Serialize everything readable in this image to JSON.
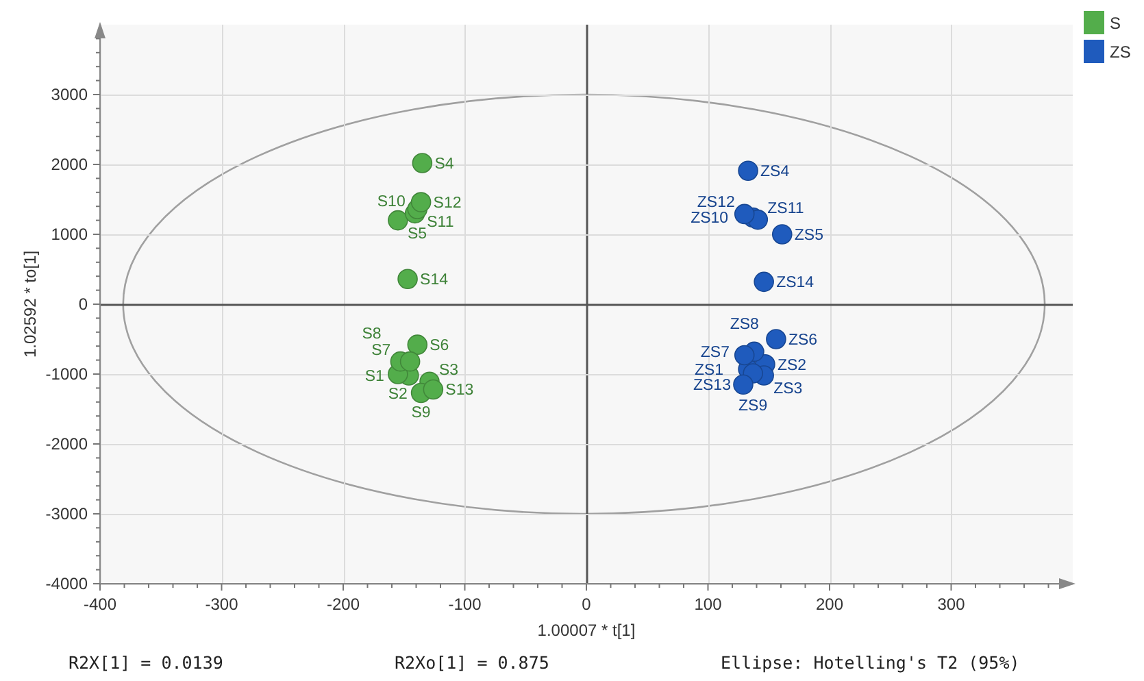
{
  "chart_data": {
    "type": "scatter",
    "xlabel": "1.00007 * t[1]",
    "ylabel": "1.02592 * to[1]",
    "annotations": [
      "R2X[1] = 0.0139",
      "R2Xo[1] = 0.875",
      "Ellipse: Hotelling's T2 (95%)"
    ],
    "series": [
      {
        "name": "S",
        "color": "#53ad4b",
        "x": [
          -146,
          -155,
          -129,
          -135,
          -155,
          -139,
          -153,
          -145,
          -136,
          -141,
          -139,
          -136,
          -126,
          -147
        ],
        "values": [
          -1020,
          -1000,
          -1110,
          2020,
          1200,
          -580,
          -820,
          -820,
          -1270,
          1300,
          1360,
          1460,
          -1220,
          360
        ],
        "value_labels": [
          "S1",
          "S2",
          "S3",
          "S4",
          "S5",
          "S6",
          "S7",
          "S8",
          "S9",
          "S10",
          "S11",
          "S12",
          "S13",
          "S14"
        ]
      },
      {
        "name": "ZS",
        "color": "#1f5bbd",
        "x": [
          133,
          147,
          146,
          133,
          161,
          156,
          138,
          130,
          137,
          137,
          141,
          130,
          129,
          146
        ],
        "values": [
          -930,
          -860,
          -1020,
          1910,
          1000,
          -500,
          -680,
          -730,
          -990,
          1240,
          1210,
          1290,
          -1150,
          320
        ],
        "value_labels": [
          "ZS1",
          "ZS2",
          "ZS3",
          "ZS4",
          "ZS5",
          "ZS6",
          "ZS7",
          "ZS8",
          "ZS9",
          "ZS10",
          "ZS11",
          "ZS12",
          "ZS13",
          "ZS14"
        ]
      }
    ],
    "xlim": [
      -400,
      400
    ],
    "ylim": [
      -4000,
      4000
    ],
    "xticks": [
      -400,
      {
        "value": -380,
        "label": null
      },
      {
        "value": -360,
        "label": null
      },
      {
        "value": -340,
        "label": null
      },
      {
        "value": -320,
        "label": null
      },
      -300,
      {
        "value": -280,
        "label": null
      },
      {
        "value": -260,
        "label": null
      },
      {
        "value": -240,
        "label": null
      },
      {
        "value": -220,
        "label": null
      },
      -200,
      {
        "value": -180,
        "label": null
      },
      {
        "value": -160,
        "label": null
      },
      {
        "value": -140,
        "label": null
      },
      {
        "value": -120,
        "label": null
      },
      -100,
      {
        "value": -80,
        "label": null
      },
      {
        "value": -60,
        "label": null
      },
      {
        "value": -40,
        "label": null
      },
      {
        "value": -20,
        "label": null
      },
      0,
      {
        "value": 20,
        "label": null
      },
      {
        "value": 40,
        "label": null
      },
      {
        "value": 60,
        "label": null
      },
      {
        "value": 80,
        "label": null
      },
      100,
      {
        "value": 120,
        "label": null
      },
      {
        "value": 140,
        "label": null
      },
      {
        "value": 160,
        "label": null
      },
      {
        "value": 180,
        "label": null
      },
      200,
      {
        "value": 220,
        "label": null
      },
      {
        "value": 240,
        "label": null
      },
      {
        "value": 260,
        "label": null
      },
      {
        "value": 280,
        "label": null
      },
      300,
      {
        "value": 320,
        "label": null
      },
      {
        "value": 340,
        "label": null
      },
      {
        "value": 360,
        "label": null
      },
      {
        "value": 380,
        "label": null
      }
    ],
    "yticks": [
      -4000,
      {
        "value": -3800,
        "label": null
      },
      {
        "value": -3600,
        "label": null
      },
      {
        "value": -3400,
        "label": null
      },
      {
        "value": -3200,
        "label": null
      },
      -3000,
      {
        "value": -2800,
        "label": null
      },
      {
        "value": -2600,
        "label": null
      },
      {
        "value": -2400,
        "label": null
      },
      {
        "value": -2200,
        "label": null
      },
      -2000,
      {
        "value": -1800,
        "label": null
      },
      {
        "value": -1600,
        "label": null
      },
      {
        "value": -1400,
        "label": null
      },
      {
        "value": -1200,
        "label": null
      },
      -1000,
      {
        "value": -800,
        "label": null
      },
      {
        "value": -600,
        "label": null
      },
      {
        "value": -400,
        "label": null
      },
      {
        "value": -200,
        "label": null
      },
      0,
      {
        "value": 200,
        "label": null
      },
      {
        "value": 400,
        "label": null
      },
      {
        "value": 600,
        "label": null
      },
      {
        "value": 800,
        "label": null
      },
      1000,
      {
        "value": 1200,
        "label": null
      },
      {
        "value": 1400,
        "label": null
      },
      {
        "value": 1600,
        "label": null
      },
      {
        "value": 1800,
        "label": null
      },
      2000,
      {
        "value": 2200,
        "label": null
      },
      {
        "value": 2400,
        "label": null
      },
      {
        "value": 2600,
        "label": null
      },
      {
        "value": 2800,
        "label": null
      },
      3000,
      {
        "value": 3200,
        "label": null
      },
      {
        "value": 3400,
        "label": null
      },
      {
        "value": 3600,
        "label": null
      },
      {
        "value": 3800,
        "label": null
      }
    ],
    "grid": true,
    "legend": "top right",
    "marker": "circle"
  }
}
